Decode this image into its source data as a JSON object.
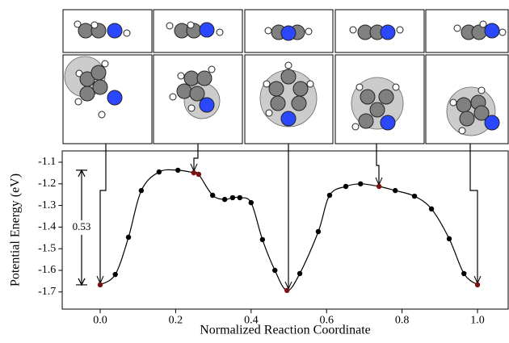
{
  "chart_data": {
    "type": "line",
    "xlabel": "Normalized Reaction Coordinate",
    "ylabel": "Potential Energy (eV)",
    "x": [
      0.0,
      0.04,
      0.075,
      0.109,
      0.156,
      0.206,
      0.248,
      0.261,
      0.298,
      0.33,
      0.351,
      0.37,
      0.4,
      0.43,
      0.463,
      0.495,
      0.529,
      0.578,
      0.608,
      0.651,
      0.69,
      0.739,
      0.782,
      0.833,
      0.878,
      0.925,
      0.964,
      1.0
    ],
    "values": [
      -1.667,
      -1.619,
      -1.447,
      -1.231,
      -1.145,
      -1.137,
      -1.149,
      -1.156,
      -1.253,
      -1.272,
      -1.264,
      -1.264,
      -1.287,
      -1.458,
      -1.6,
      -1.693,
      -1.615,
      -1.421,
      -1.253,
      -1.212,
      -1.2,
      -1.212,
      -1.231,
      -1.257,
      -1.316,
      -1.454,
      -1.615,
      -1.667
    ],
    "marker_colors": [
      "#7a1010",
      "#000000",
      "#000000",
      "#000000",
      "#000000",
      "#000000",
      "#7a1010",
      "#7a1010",
      "#000000",
      "#000000",
      "#000000",
      "#000000",
      "#000000",
      "#000000",
      "#000000",
      "#7a1010",
      "#000000",
      "#000000",
      "#000000",
      "#000000",
      "#000000",
      "#7a1010",
      "#000000",
      "#000000",
      "#000000",
      "#000000",
      "#000000",
      "#7a1010"
    ],
    "line_color": "#000000",
    "xlim": [
      -0.1,
      1.08
    ],
    "ylim": [
      -1.78,
      -1.05
    ],
    "xticks": [
      {
        "value": 0,
        "label": "0.0"
      },
      0.2,
      0.4,
      0.6,
      0.8,
      {
        "value": 1,
        "label": "1.0"
      }
    ],
    "yticks": [
      -1.1,
      -1.2,
      -1.3,
      -1.4,
      -1.5,
      -1.6,
      -1.7
    ],
    "barrier": {
      "value": 0.53,
      "range": [
        -1.667,
        -1.137
      ]
    }
  }
}
